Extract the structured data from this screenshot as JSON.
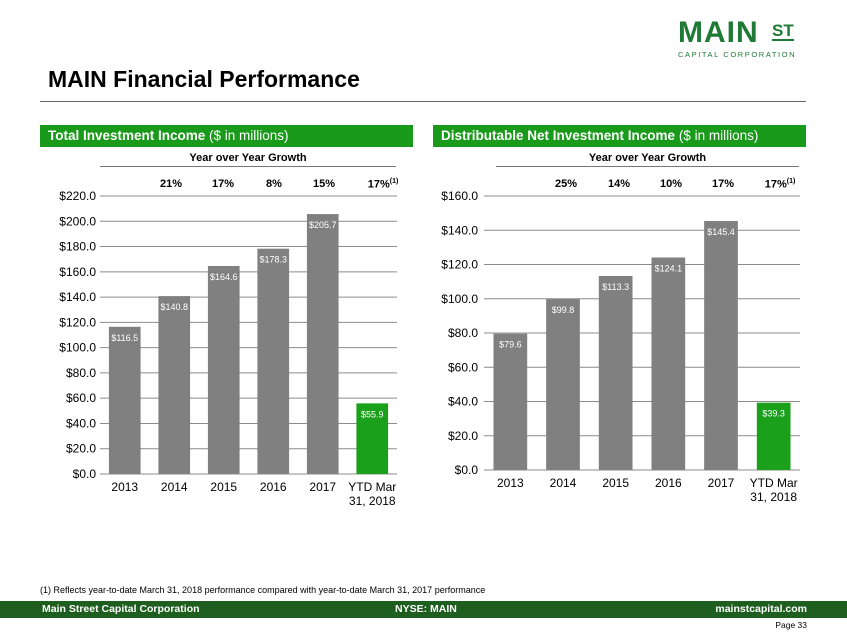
{
  "logo": {
    "main": "MAIN",
    "st": "ST",
    "sub": "CAPITAL CORPORATION"
  },
  "page_title": "MAIN Financial Performance",
  "panels": [
    {
      "header_bold": "Total Investment Income",
      "header_rest": " ($ in millions)",
      "yoy_label": "Year over Year Growth"
    },
    {
      "header_bold": "Distributable Net Investment Income",
      "header_rest": " ($ in millions)",
      "yoy_label": "Year over Year Growth"
    }
  ],
  "growth": [
    [
      {
        "v": "21%"
      },
      {
        "v": "17%"
      },
      {
        "v": "8%"
      },
      {
        "v": "15%"
      },
      {
        "v": "17%",
        "sup": "(1)"
      }
    ],
    [
      {
        "v": "25%"
      },
      {
        "v": "14%"
      },
      {
        "v": "10%"
      },
      {
        "v": "17%"
      },
      {
        "v": "17%",
        "sup": "(1)"
      }
    ]
  ],
  "colors": {
    "bar": "#808080",
    "highlight": "#1aa01a",
    "grid": "#8c8c8c",
    "header": "#1a9a1a",
    "footer": "#1e5e1e"
  },
  "chart_data": [
    {
      "type": "bar",
      "title": "Total Investment Income ($ in millions)",
      "categories": [
        "2013",
        "2014",
        "2015",
        "2016",
        "2017",
        "YTD Mar 31, 2018"
      ],
      "values": [
        116.5,
        140.8,
        164.6,
        178.3,
        205.7,
        55.9
      ],
      "value_labels": [
        "$116.5",
        "$140.8",
        "$164.6",
        "$178.3",
        "$205.7",
        "$55.9"
      ],
      "y_ticks": [
        "$0.0",
        "$20.0",
        "$40.0",
        "$60.0",
        "$80.0",
        "$100.0",
        "$120.0",
        "$140.0",
        "$160.0",
        "$180.0",
        "$200.0",
        "$220.0"
      ],
      "ylim": [
        0,
        220
      ],
      "grid": true,
      "highlight_index": 5
    },
    {
      "type": "bar",
      "title": "Distributable Net Investment Income ($ in millions)",
      "categories": [
        "2013",
        "2014",
        "2015",
        "2016",
        "2017",
        "YTD Mar 31, 2018"
      ],
      "values": [
        79.6,
        99.8,
        113.3,
        124.1,
        145.4,
        39.3
      ],
      "value_labels": [
        "$79.6",
        "$99.8",
        "$113.3",
        "$124.1",
        "$145.4",
        "$39.3"
      ],
      "y_ticks": [
        "$0.0",
        "$20.0",
        "$40.0",
        "$60.0",
        "$80.0",
        "$100.0",
        "$120.0",
        "$140.0",
        "$160.0"
      ],
      "ylim": [
        0,
        160
      ],
      "grid": true,
      "highlight_index": 5
    }
  ],
  "footnote": "(1) Reflects year-to-date March 31, 2018 performance compared with year-to-date March 31, 2017 performance",
  "footer": {
    "left": "Main Street Capital Corporation",
    "mid": "NYSE: MAIN",
    "right": "mainstcapital.com"
  },
  "page_label": "Page 33"
}
